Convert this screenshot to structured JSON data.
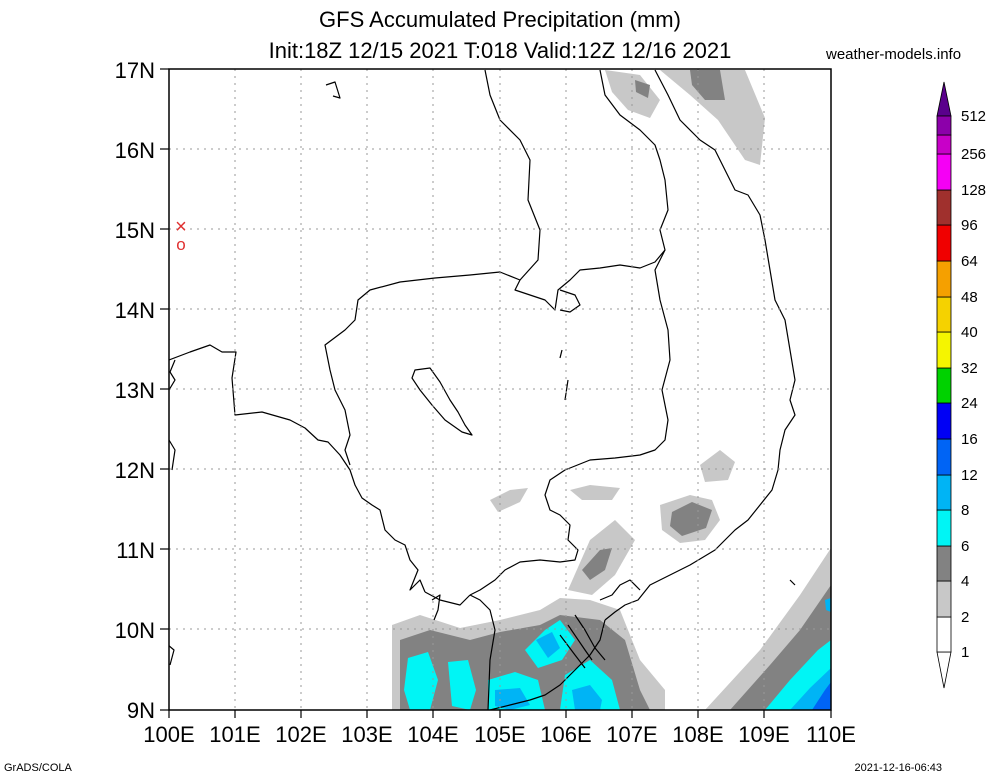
{
  "title": {
    "line1": "GFS Accumulated Precipitation (mm)",
    "line2": "Init:18Z 12/15 2021 T:018 Valid:12Z 12/16 2021",
    "site": "weather-models.info"
  },
  "footer": {
    "left": "GrADS/COLA",
    "right": "2021-12-16-06:43"
  },
  "axes": {
    "lat_labels": [
      "17N",
      "16N",
      "15N",
      "14N",
      "13N",
      "12N",
      "11N",
      "10N",
      "9N"
    ],
    "lon_labels": [
      "100E",
      "101E",
      "102E",
      "103E",
      "104E",
      "105E",
      "106E",
      "107E",
      "108E",
      "109E",
      "110E"
    ],
    "lat_range": [
      9,
      17
    ],
    "lon_range": [
      100,
      110
    ],
    "grid": "dotted"
  },
  "markers": [
    {
      "symbol": "×",
      "lon": 100.2,
      "lat": 15.05,
      "color": "#e03030"
    },
    {
      "symbol": "o",
      "lon": 100.2,
      "lat": 14.85,
      "color": "#e03030"
    }
  ],
  "colorbar": {
    "labels": [
      "1",
      "2",
      "4",
      "6",
      "8",
      "12",
      "16",
      "24",
      "32",
      "40",
      "48",
      "64",
      "96",
      "128",
      "256",
      "512"
    ],
    "colors": [
      "#ffffff",
      "#c8c8c8",
      "#828282",
      "#00f5f5",
      "#00b4f5",
      "#0064f5",
      "#0000f5",
      "#00d200",
      "#00e600",
      "#f5f500",
      "#f5d200",
      "#f5a000",
      "#f00000",
      "#a0302d",
      "#f500f5",
      "#c800c8",
      "#8c00aa",
      "#5a008c"
    ]
  },
  "precip_colors": {
    "c1": "#c8c8c8",
    "c2": "#828282",
    "c4": "#00f5f5",
    "c6": "#00b4f5",
    "c8": "#0064f5"
  }
}
